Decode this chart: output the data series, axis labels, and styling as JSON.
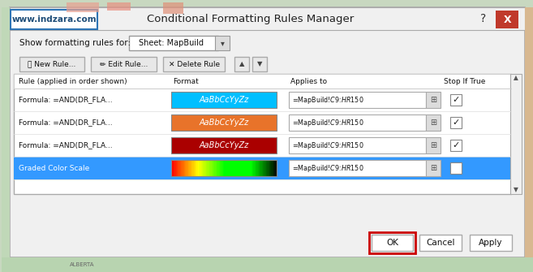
{
  "title": "Conditional Formatting Rules Manager",
  "watermark": "www.indzara.com",
  "show_for_label": "Show formatting rules for:",
  "dropdown_text": "Sheet: MapBuild",
  "buttons": [
    "New Rule...",
    "Edit Rule...",
    "Delete Rule"
  ],
  "col_headers": [
    "Rule (applied in order shown)",
    "Format",
    "Applies to",
    "Stop If True"
  ],
  "rows": [
    {
      "rule": "Formula: =AND(DR_FLA...",
      "format_color": "#00BFFF",
      "format_text": "AaBbCcYyZz",
      "applies_to": "=MapBuild!$C$9:$HR$150",
      "stop_if_true": true,
      "selected": false
    },
    {
      "rule": "Formula: =AND(DR_FLA...",
      "format_color": "#E8732A",
      "format_text": "AaBbCcYyZz",
      "applies_to": "=MapBuild!$C$9:$HR$150",
      "stop_if_true": true,
      "selected": false
    },
    {
      "rule": "Formula: =AND(DR_FLA...",
      "format_color": "#AA0000",
      "format_text": "AaBbCcYyZz",
      "applies_to": "=MapBuild!$C$9:$HR$150",
      "stop_if_true": true,
      "selected": false
    },
    {
      "rule": "Graded Color Scale",
      "format_color": "gradient",
      "format_text": "",
      "applies_to": "=MapBuild!$C$9:$HR$150",
      "stop_if_true": false,
      "selected": true
    }
  ],
  "footer_buttons": [
    "OK",
    "Cancel",
    "Apply"
  ],
  "bg_color": "#F0F0F0",
  "dialog_bg": "#F0F0F0",
  "header_bg": "#FFFFFF",
  "selected_row_color": "#3399FF",
  "title_bar_bg": "#F0F0F0",
  "close_btn_color": "#C0392B",
  "watermark_text_color": "#1F4E79",
  "watermark_border_color": "#2E75B6",
  "ok_border_color": "#CC0000",
  "map_bg_color": "#A8D8A8"
}
